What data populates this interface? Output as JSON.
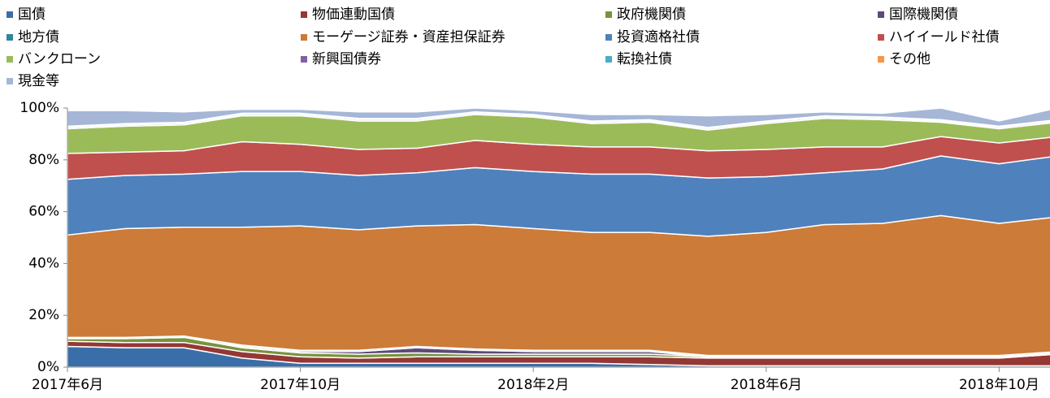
{
  "chart_data": {
    "type": "stacked_area",
    "categories": [
      "2017年6月",
      null,
      null,
      null,
      "2017年10月",
      null,
      null,
      null,
      "2018年2月",
      null,
      null,
      null,
      "2018年6月",
      null,
      null,
      null,
      "2018年10月",
      null
    ],
    "ylim": [
      0,
      100
    ],
    "yticks": [
      {
        "value": 0,
        "label": "0%"
      },
      {
        "value": 20,
        "label": "20%"
      },
      {
        "value": 40,
        "label": "40%"
      },
      {
        "value": 60,
        "label": "60%"
      },
      {
        "value": 80,
        "label": "80%"
      },
      {
        "value": 100,
        "label": "100%"
      }
    ],
    "series": [
      {
        "name": "国債",
        "color": "#3a6ea8",
        "values": [
          8,
          7.5,
          7.5,
          3.5,
          1.5,
          1.5,
          1.5,
          1.5,
          1.5,
          1.5,
          1,
          0.5,
          0.5,
          0.5,
          0.5,
          0.5,
          0.5,
          0.5
        ]
      },
      {
        "name": "物価連動国債",
        "color": "#953735",
        "values": [
          2,
          2,
          2,
          2.5,
          2.5,
          2,
          2.5,
          2.5,
          2.5,
          2.5,
          3,
          3,
          3,
          3,
          3,
          3,
          3,
          4.5
        ]
      },
      {
        "name": "政府機関債",
        "color": "#77933c",
        "values": [
          1,
          1.5,
          2,
          1.5,
          1.5,
          1.5,
          1.5,
          1,
          1,
          1,
          1,
          0.5,
          0.5,
          0.5,
          0.5,
          0.5,
          0.5,
          0.5
        ]
      },
      {
        "name": "国際機関債",
        "color": "#5f497a",
        "values": [
          0,
          0,
          0,
          0.5,
          0.5,
          1,
          2,
          1.5,
          1,
          1,
          1,
          0,
          0,
          0,
          0,
          0,
          0,
          0
        ]
      },
      {
        "name": "地方債",
        "color": "#31859c",
        "values": [
          0.5,
          0.5,
          0.5,
          0.5,
          0.5,
          0.5,
          0.5,
          0.5,
          0.5,
          0.5,
          0.5,
          0.5,
          0.5,
          0.5,
          0.5,
          0.5,
          0.5,
          0.5
        ]
      },
      {
        "name": "モーゲージ証券・資産担保証券",
        "color": "#cc7b38",
        "values": [
          39.5,
          42,
          42,
          45.5,
          48,
          46.5,
          46.5,
          48,
          47,
          45.5,
          45.5,
          46,
          47.5,
          50.5,
          51,
          54,
          51,
          52
        ]
      },
      {
        "name": "投資適格社債",
        "color": "#4f81bd",
        "values": [
          21.5,
          20.5,
          20.5,
          21.5,
          21,
          21,
          20.5,
          22,
          22,
          22.5,
          22.5,
          22.5,
          21.5,
          20,
          21,
          23,
          23,
          23.5
        ]
      },
      {
        "name": "ハイイールド社債",
        "color": "#c0504d",
        "values": [
          10,
          9,
          9,
          11.5,
          10.5,
          10,
          9.5,
          10.5,
          10.5,
          10.5,
          10.5,
          10.5,
          10.5,
          10,
          8.5,
          7.5,
          8,
          7.5
        ]
      },
      {
        "name": "バンクローン",
        "color": "#9bbb59",
        "values": [
          9.5,
          10,
          10,
          10,
          11,
          11,
          10.5,
          10,
          10.5,
          9,
          9.5,
          8,
          10,
          11,
          10.5,
          5.5,
          5.5,
          5.5
        ]
      },
      {
        "name": "新興国債券",
        "color": "#8064a2",
        "values": [
          0.5,
          0.5,
          0.5,
          0.5,
          0.5,
          0.5,
          0.5,
          0.5,
          0.5,
          0.5,
          0.5,
          0.5,
          0.5,
          0.5,
          0.5,
          0.5,
          0.5,
          0.5
        ]
      },
      {
        "name": "転換社債",
        "color": "#4bacc6",
        "values": [
          0.5,
          0.5,
          0.5,
          0.5,
          0.5,
          0.5,
          0.5,
          0.5,
          0.5,
          0.5,
          0.5,
          0.5,
          0.5,
          0.5,
          0.5,
          0.5,
          0.5,
          0.5
        ]
      },
      {
        "name": "その他",
        "color": "#f79646",
        "values": [
          0,
          0,
          0,
          0,
          0,
          0,
          0,
          0,
          0,
          0,
          0,
          0,
          0,
          0,
          0,
          0,
          0,
          0
        ]
      },
      {
        "name": "現金等",
        "color": "#a5b6d6",
        "values": [
          6,
          5,
          4,
          1.5,
          1.5,
          2.5,
          2.5,
          1.5,
          1.5,
          2.5,
          2,
          4.5,
          2.5,
          1.5,
          1.5,
          4.5,
          2,
          4.5
        ]
      }
    ]
  }
}
